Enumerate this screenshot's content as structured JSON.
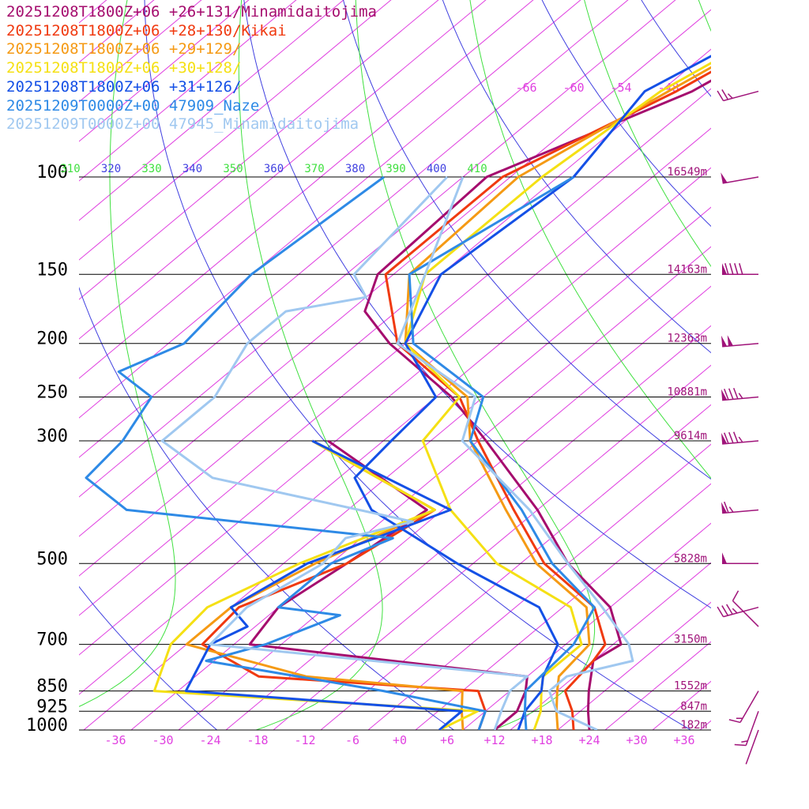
{
  "colors": {
    "isotherm": "#e040e0",
    "theta": "#4040e0",
    "theta_e": "#40e040",
    "isobar": "#000000",
    "height_label": "#a0147a",
    "wind": "#a0147a"
  },
  "chart_data": {
    "type": "skew-t",
    "legend": [
      {
        "label": "20251208T1800Z+06 +26+131/Minamidaitojima",
        "color": "#a50d6e"
      },
      {
        "label": "20251208T1800Z+06 +28+130/Kikai",
        "color": "#f03a10"
      },
      {
        "label": "20251208T1800Z+06 +29+129/",
        "color": "#f59a14"
      },
      {
        "label": "20251208T1800Z+06 +30+128/",
        "color": "#f5e014"
      },
      {
        "label": "20251208T1800Z+06 +31+126/",
        "color": "#1450e6"
      },
      {
        "label": "20251209T0000Z+00 47909_Naze",
        "color": "#2e8ae6"
      },
      {
        "label": "20251209T0000Z+00 47945_Minamidaitojima",
        "color": "#a0c8f0"
      }
    ],
    "pressure_levels": [
      {
        "p": 100,
        "label": "100",
        "height": "16549m"
      },
      {
        "p": 150,
        "label": "150",
        "height": "14163m"
      },
      {
        "p": 200,
        "label": "200",
        "height": "12363m"
      },
      {
        "p": 250,
        "label": "250",
        "height": "10881m"
      },
      {
        "p": 300,
        "label": "300",
        "height": "9614m"
      },
      {
        "p": 500,
        "label": "500",
        "height": "5828m"
      },
      {
        "p": 700,
        "label": "700",
        "height": "3150m"
      },
      {
        "p": 850,
        "label": "850",
        "height": "1552m"
      },
      {
        "p": 925,
        "label": "925",
        "height": "847m"
      },
      {
        "p": 1000,
        "label": "1000",
        "height": "182m"
      }
    ],
    "x_ticks": [
      "-36",
      "-30",
      "-24",
      "-18",
      "-12",
      "-6",
      "+0",
      "+6",
      "+12",
      "+18",
      "+24",
      "+30",
      "+36"
    ],
    "upper_isotherm_labels": [
      "-66",
      "-60",
      "-54",
      "-48"
    ],
    "theta_labels": [
      "310",
      "320",
      "330",
      "340",
      "350",
      "360",
      "370",
      "380",
      "390",
      "400",
      "410"
    ],
    "series": [
      {
        "name": "20251208T1800Z+06 +26+131/Minamidaitojima",
        "color": "#a50d6e",
        "temperature": [
          [
            20,
            -55
          ],
          [
            50,
            -54
          ],
          [
            70,
            -60
          ],
          [
            100,
            -73
          ],
          [
            150,
            -72
          ],
          [
            175,
            -68
          ],
          [
            200,
            -60
          ],
          [
            250,
            -44
          ],
          [
            300,
            -33
          ],
          [
            400,
            -16
          ],
          [
            500,
            -4
          ],
          [
            600,
            8
          ],
          [
            700,
            15
          ],
          [
            750,
            14
          ],
          [
            850,
            18
          ],
          [
            925,
            21
          ],
          [
            1000,
            24
          ]
        ],
        "dewpoint": [
          [
            300,
            -53
          ],
          [
            400,
            -30
          ],
          [
            500,
            -32
          ],
          [
            600,
            -34
          ],
          [
            700,
            -32
          ],
          [
            800,
            8
          ],
          [
            850,
            10
          ],
          [
            925,
            12
          ],
          [
            1000,
            12
          ]
        ]
      },
      {
        "name": "20251208T1800Z+06 +28+130/Kikai",
        "color": "#f03a10",
        "temperature": [
          [
            20,
            -57
          ],
          [
            50,
            -56
          ],
          [
            70,
            -62
          ],
          [
            100,
            -71
          ],
          [
            150,
            -71
          ],
          [
            200,
            -59
          ],
          [
            250,
            -43
          ],
          [
            300,
            -34
          ],
          [
            400,
            -19
          ],
          [
            500,
            -7
          ],
          [
            600,
            6
          ],
          [
            700,
            13
          ],
          [
            750,
            14
          ],
          [
            850,
            15
          ],
          [
            925,
            19
          ],
          [
            1000,
            22
          ]
        ],
        "dewpoint": [
          [
            300,
            -55
          ],
          [
            400,
            -29
          ],
          [
            500,
            -32
          ],
          [
            600,
            -39
          ],
          [
            700,
            -38
          ],
          [
            800,
            -26
          ],
          [
            850,
            4
          ],
          [
            925,
            8
          ],
          [
            1000,
            10
          ]
        ]
      },
      {
        "name": "20251208T1800Z+06 +29+129/",
        "color": "#f59a14",
        "temperature": [
          [
            20,
            -58
          ],
          [
            50,
            -57
          ],
          [
            70,
            -63
          ],
          [
            100,
            -69
          ],
          [
            150,
            -68
          ],
          [
            200,
            -58
          ],
          [
            250,
            -42
          ],
          [
            300,
            -35
          ],
          [
            400,
            -20
          ],
          [
            500,
            -8
          ],
          [
            600,
            5
          ],
          [
            700,
            11
          ],
          [
            800,
            12
          ],
          [
            850,
            14
          ],
          [
            925,
            17
          ],
          [
            1000,
            20
          ]
        ],
        "dewpoint": [
          [
            300,
            -55
          ],
          [
            400,
            -29
          ],
          [
            500,
            -36
          ],
          [
            600,
            -40
          ],
          [
            700,
            -40
          ],
          [
            800,
            -20
          ],
          [
            850,
            2
          ],
          [
            925,
            5
          ],
          [
            1000,
            8
          ]
        ]
      },
      {
        "name": "20251208T1800Z+06 +30+128/",
        "color": "#f5e014",
        "temperature": [
          [
            20,
            -59
          ],
          [
            50,
            -58
          ],
          [
            70,
            -64
          ],
          [
            100,
            -66
          ],
          [
            150,
            -66
          ],
          [
            200,
            -58
          ],
          [
            250,
            -43
          ],
          [
            300,
            -41
          ],
          [
            400,
            -27
          ],
          [
            500,
            -13
          ],
          [
            600,
            3
          ],
          [
            700,
            10
          ],
          [
            800,
            10
          ],
          [
            850,
            12
          ],
          [
            925,
            15
          ],
          [
            1000,
            17
          ]
        ],
        "dewpoint": [
          [
            300,
            -55
          ],
          [
            400,
            -29
          ],
          [
            500,
            -38
          ],
          [
            600,
            -43
          ],
          [
            700,
            -42
          ],
          [
            850,
            -37
          ],
          [
            925,
            7
          ],
          [
            1000,
            5
          ]
        ]
      },
      {
        "name": "20251208T1800Z+06 +31+126/",
        "color": "#1450e6",
        "temperature": [
          [
            20,
            -60
          ],
          [
            50,
            -59
          ],
          [
            70,
            -66
          ],
          [
            100,
            -62
          ],
          [
            150,
            -64
          ],
          [
            200,
            -58
          ],
          [
            250,
            -46
          ],
          [
            300,
            -45
          ],
          [
            350,
            -44
          ],
          [
            400,
            -37
          ],
          [
            500,
            -18
          ],
          [
            600,
            -1
          ],
          [
            700,
            7
          ],
          [
            800,
            10
          ],
          [
            850,
            12
          ],
          [
            925,
            13
          ],
          [
            1000,
            15
          ]
        ],
        "dewpoint": [
          [
            300,
            -55
          ],
          [
            400,
            -27
          ],
          [
            500,
            -37
          ],
          [
            600,
            -40
          ],
          [
            650,
            -35
          ],
          [
            700,
            -37
          ],
          [
            850,
            -33
          ],
          [
            925,
            5
          ],
          [
            1000,
            5
          ]
        ]
      },
      {
        "name": "20251209T0000Z+00 47909_Naze",
        "color": "#2e8ae6",
        "temperature": [
          [
            100,
            -62
          ],
          [
            150,
            -68
          ],
          [
            200,
            -57
          ],
          [
            250,
            -40
          ],
          [
            300,
            -35
          ],
          [
            400,
            -18
          ],
          [
            500,
            -6
          ],
          [
            600,
            6
          ],
          [
            700,
            9
          ],
          [
            850,
            10
          ],
          [
            925,
            13
          ],
          [
            1000,
            16
          ]
        ],
        "dewpoint": [
          [
            100,
            -86
          ],
          [
            150,
            -88
          ],
          [
            200,
            -86
          ],
          [
            225,
            -90
          ],
          [
            250,
            -82
          ],
          [
            300,
            -79
          ],
          [
            350,
            -78
          ],
          [
            400,
            -68
          ],
          [
            450,
            -30
          ],
          [
            500,
            -34
          ],
          [
            600,
            -34
          ],
          [
            620,
            -25
          ],
          [
            700,
            -30
          ],
          [
            750,
            -35
          ],
          [
            850,
            -8
          ],
          [
            925,
            8
          ],
          [
            1000,
            10
          ]
        ]
      },
      {
        "name": "20251209T0000Z+00 47945_Minamidaitojima",
        "color": "#a0c8f0",
        "temperature": [
          [
            100,
            -76
          ],
          [
            150,
            -66
          ],
          [
            200,
            -59
          ],
          [
            250,
            -41
          ],
          [
            300,
            -36
          ],
          [
            400,
            -17
          ],
          [
            500,
            -4
          ],
          [
            600,
            7
          ],
          [
            700,
            16
          ],
          [
            750,
            19
          ],
          [
            800,
            13
          ],
          [
            850,
            13
          ],
          [
            925,
            17
          ],
          [
            1000,
            25
          ]
        ],
        "dewpoint": [
          [
            100,
            -78
          ],
          [
            150,
            -75
          ],
          [
            165,
            -70
          ],
          [
            175,
            -78
          ],
          [
            200,
            -78
          ],
          [
            250,
            -74
          ],
          [
            300,
            -74
          ],
          [
            350,
            -62
          ],
          [
            420,
            -30
          ],
          [
            450,
            -36
          ],
          [
            500,
            -35
          ],
          [
            600,
            -38
          ],
          [
            700,
            -37
          ],
          [
            800,
            8
          ],
          [
            850,
            8
          ],
          [
            925,
            10
          ],
          [
            1000,
            12
          ]
        ]
      }
    ],
    "winds": [
      {
        "p": 30,
        "dir": 0,
        "speed": 0
      },
      {
        "p": 70,
        "dir": 255,
        "speed": 25
      },
      {
        "p": 100,
        "dir": 260,
        "speed": 50
      },
      {
        "p": 150,
        "dir": 270,
        "speed": 90
      },
      {
        "p": 200,
        "dir": 265,
        "speed": 100
      },
      {
        "p": 250,
        "dir": 265,
        "speed": 85
      },
      {
        "p": 300,
        "dir": 265,
        "speed": 85
      },
      {
        "p": 400,
        "dir": 265,
        "speed": 65
      },
      {
        "p": 500,
        "dir": 270,
        "speed": 50
      },
      {
        "p": 600,
        "dir": 255,
        "speed": 35
      },
      {
        "p": 650,
        "dir": 315,
        "speed": 10
      },
      {
        "p": 850,
        "dir": 210,
        "speed": 15
      },
      {
        "p": 925,
        "dir": 200,
        "speed": 15
      },
      {
        "p": 1000,
        "dir": 200,
        "speed": 0
      }
    ]
  }
}
